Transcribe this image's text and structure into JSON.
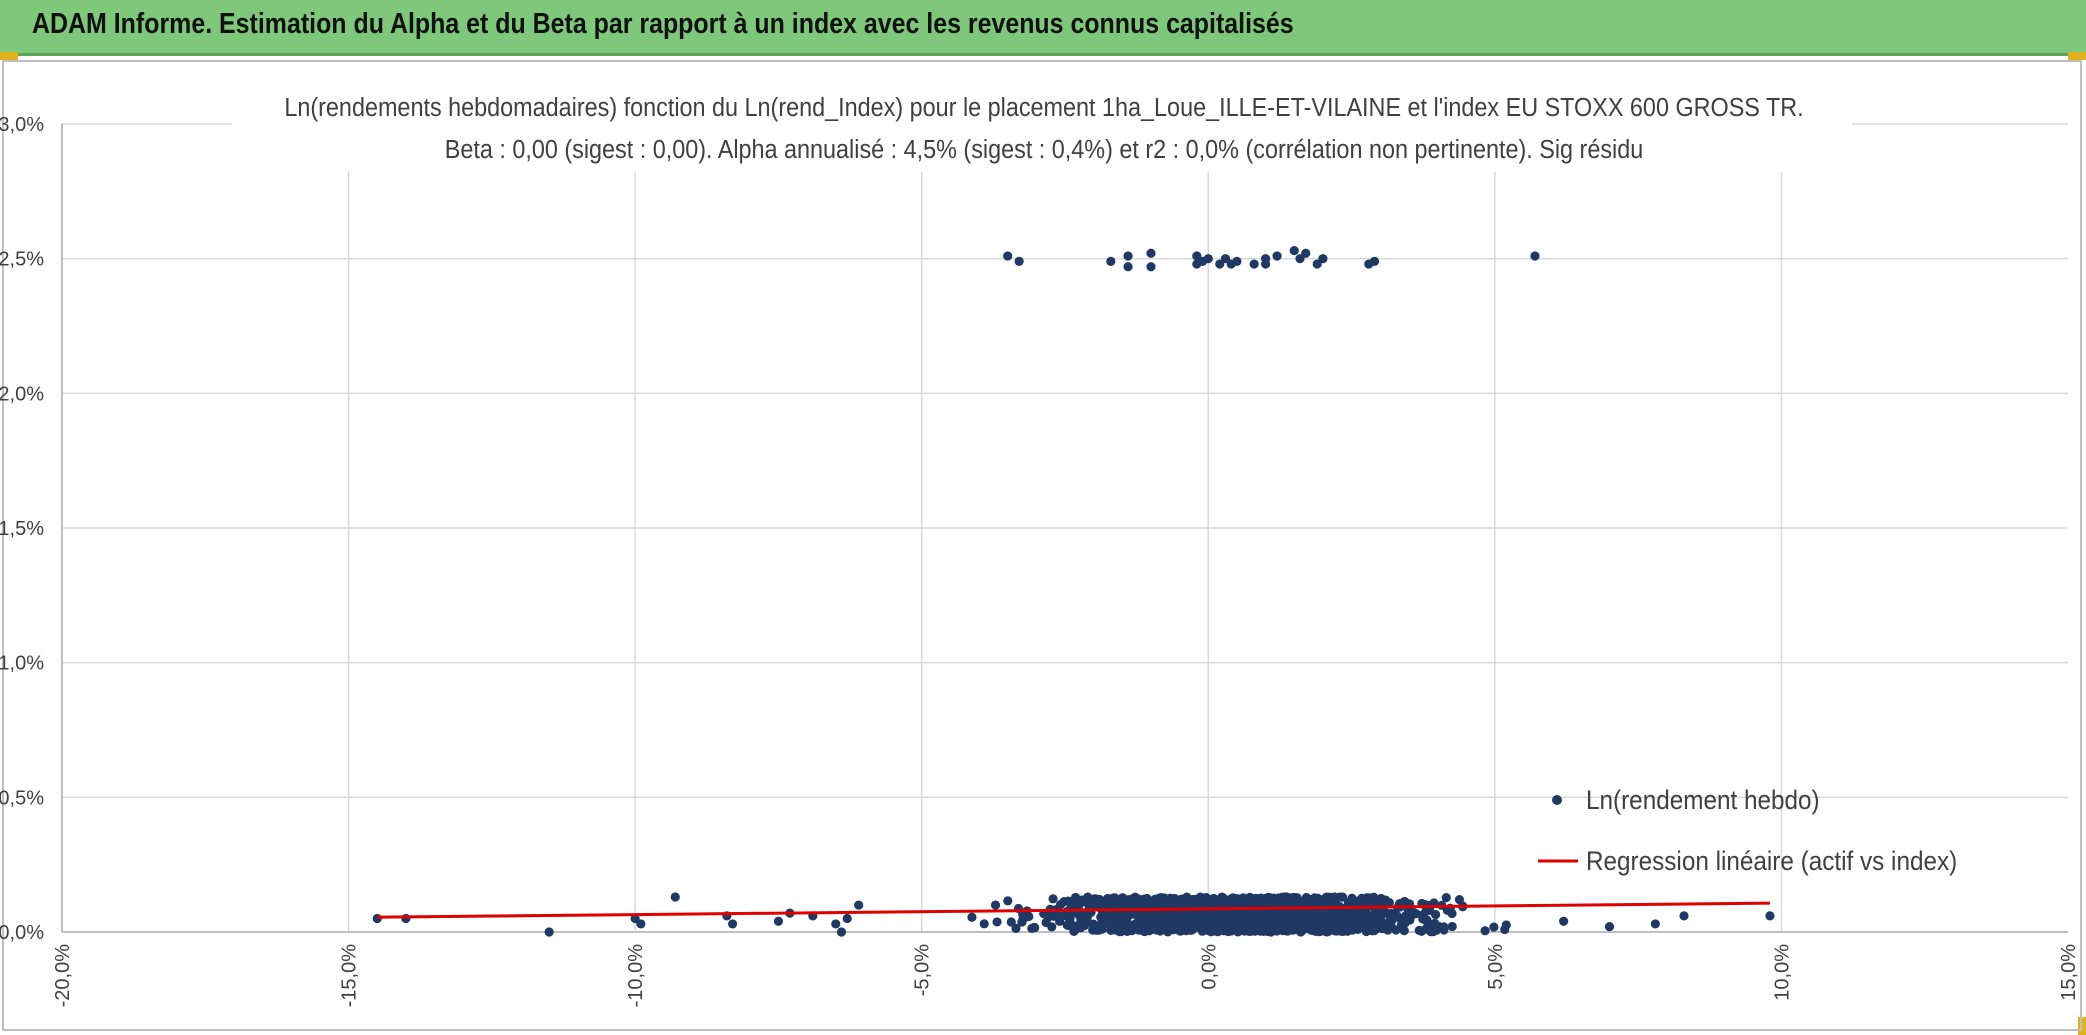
{
  "header": {
    "title": "ADAM Informe. Estimation du Alpha et du Beta par rapport à un index avec les revenus connus capitalisés"
  },
  "colors": {
    "banner": "#7ec77b",
    "points": "#203864",
    "regression": "#e00000",
    "grid": "#d9d9d9"
  },
  "chart_data": {
    "type": "scatter",
    "title": "Ln(rendements hebdomadaires) fonction du Ln(rend_Index) pour le placement 1ha_Loue_ILLE-ET-VILAINE et l'index EU STOXX 600 GROSS TR.",
    "subtitle": "Beta : 0,00 (sigest : 0,00). Alpha annualisé : 4,5% (sigest : 0,4%) et r2 : 0,0% (corrélation non pertinente). Sig résidu",
    "xlabel": "",
    "ylabel": "",
    "xlim": [
      -20,
      15
    ],
    "ylim": [
      0,
      3
    ],
    "x_ticks": [
      "-20,0%",
      "-15,0%",
      "-10,0%",
      "-5,0%",
      "0,0%",
      "5,0%",
      "10,0%",
      "15,0%"
    ],
    "y_ticks": [
      "0,0%",
      "0,5%",
      "1,0%",
      "1,5%",
      "2,0%",
      "2,5%",
      "3,0%"
    ],
    "grid": true,
    "legend_position": "bottom-right",
    "series": [
      {
        "name": "Ln(rendement hebdo)",
        "kind": "scatter",
        "points_upper_cluster": [
          [
            -3.5,
            2.51
          ],
          [
            -3.3,
            2.49
          ],
          [
            -1.7,
            2.49
          ],
          [
            -1.4,
            2.47
          ],
          [
            -1.4,
            2.51
          ],
          [
            -1.0,
            2.52
          ],
          [
            -1.0,
            2.47
          ],
          [
            -0.2,
            2.51
          ],
          [
            -0.2,
            2.48
          ],
          [
            -0.1,
            2.49
          ],
          [
            0.0,
            2.5
          ],
          [
            0.2,
            2.48
          ],
          [
            0.3,
            2.5
          ],
          [
            0.4,
            2.48
          ],
          [
            0.5,
            2.49
          ],
          [
            0.8,
            2.48
          ],
          [
            1.0,
            2.48
          ],
          [
            1.0,
            2.5
          ],
          [
            1.2,
            2.51
          ],
          [
            1.5,
            2.53
          ],
          [
            1.6,
            2.5
          ],
          [
            1.7,
            2.52
          ],
          [
            1.9,
            2.48
          ],
          [
            2.0,
            2.5
          ],
          [
            2.8,
            2.48
          ],
          [
            2.9,
            2.49
          ],
          [
            5.7,
            2.51
          ]
        ],
        "points_outliers_low": [
          [
            -14.5,
            0.05
          ],
          [
            -14.0,
            0.05
          ],
          [
            -11.5,
            0.0
          ],
          [
            -10.0,
            0.05
          ],
          [
            -9.9,
            0.03
          ],
          [
            -9.3,
            0.13
          ],
          [
            -8.4,
            0.06
          ],
          [
            -8.3,
            0.03
          ],
          [
            -7.5,
            0.04
          ],
          [
            -7.3,
            0.07
          ],
          [
            -6.9,
            0.06
          ],
          [
            -6.5,
            0.03
          ],
          [
            -6.4,
            0.0
          ],
          [
            -6.3,
            0.05
          ],
          [
            -6.1,
            0.1
          ],
          [
            6.2,
            0.04
          ],
          [
            7.0,
            0.02
          ],
          [
            7.8,
            0.03
          ],
          [
            8.3,
            0.06
          ],
          [
            9.8,
            0.06
          ]
        ],
        "bulk_cluster": {
          "x_range": [
            -6,
            5.5
          ],
          "x_center": 0.5,
          "y_range": [
            0,
            0.13
          ],
          "approx_count": 1400
        }
      },
      {
        "name": "Regression linéaire (actif vs index)",
        "kind": "line",
        "points": [
          [
            -14.5,
            0.055
          ],
          [
            9.8,
            0.107
          ]
        ]
      }
    ]
  }
}
